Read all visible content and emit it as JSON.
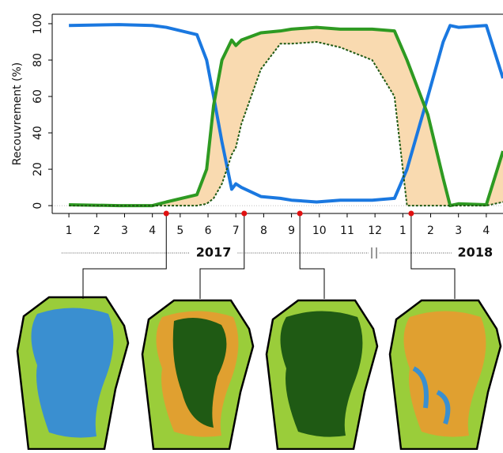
{
  "chart_data": {
    "type": "line",
    "y_label": "Recouvrement (%)",
    "x": [
      1,
      2.8,
      4,
      4.5,
      5.6,
      5.95,
      6.2,
      6.5,
      6.85,
      7,
      7.2,
      7.9,
      8.6,
      9,
      9.9,
      10.75,
      11.9,
      12.7,
      13.15,
      13.9,
      14.45,
      14.7,
      15,
      16,
      16.6
    ],
    "series": [
      {
        "color": "#1a78e0",
        "style": "solid",
        "values": [
          99,
          99.5,
          99,
          98,
          94,
          80,
          60,
          35,
          9,
          12,
          10,
          5,
          4,
          3,
          2,
          3,
          3,
          4,
          20,
          60,
          90,
          99,
          98,
          99,
          70
        ]
      },
      {
        "color": "#2e9a22",
        "style": "solid",
        "values": [
          0.5,
          0,
          0,
          2,
          6,
          20,
          55,
          80,
          91,
          88,
          91,
          95,
          96,
          97,
          98,
          97,
          97,
          96,
          80,
          50,
          15,
          0,
          1,
          0.5,
          30
        ]
      },
      {
        "color": "#1f5a14",
        "style": "dashed",
        "values": [
          0,
          0,
          0,
          0,
          0,
          1,
          4,
          12,
          28,
          32,
          45,
          75,
          89,
          89,
          90,
          87,
          80,
          60,
          0,
          0,
          0,
          0,
          0,
          0,
          2
        ]
      }
    ],
    "fill_color": "#f9dab0",
    "highlight_x": [
      4.5,
      7.3,
      9.3,
      13.3
    ],
    "highlight_color": "#e01010",
    "year_labels": [
      {
        "x": 6.2,
        "label": "2017"
      },
      {
        "x": 15.6,
        "label": "2018"
      }
    ],
    "xlim": [
      0.4,
      16.6
    ],
    "ylim": [
      -4.3,
      105.2
    ],
    "xticks": [
      1,
      2,
      3,
      4,
      5,
      6,
      7,
      8,
      9,
      10,
      11,
      12,
      {
        "value": 13,
        "label": "1"
      },
      {
        "value": 14,
        "label": "2"
      },
      {
        "value": 15,
        "label": "3"
      },
      {
        "value": 16,
        "label": "4"
      }
    ],
    "yticks": [
      0,
      20,
      40,
      60,
      80,
      100
    ]
  }
}
